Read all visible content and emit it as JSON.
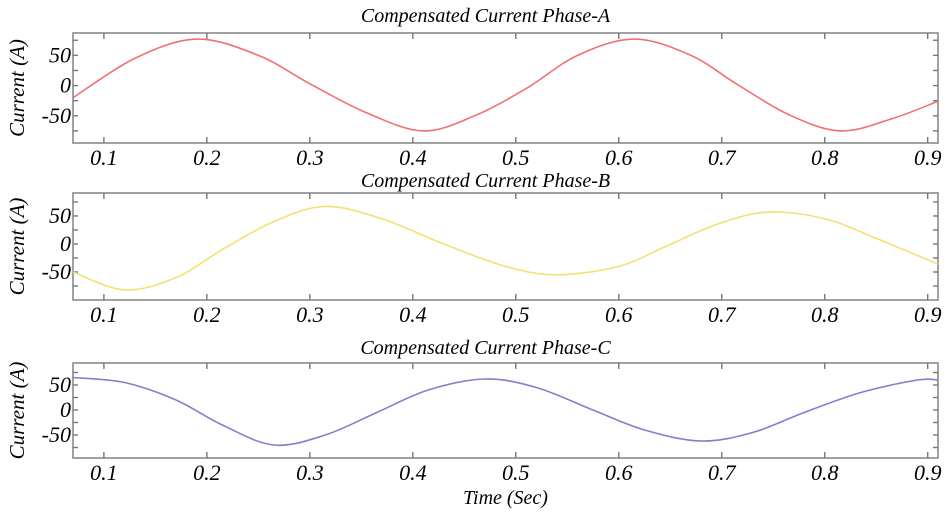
{
  "chart_data": [
    {
      "type": "line",
      "title": "Compensated Current Phase-A",
      "xlabel": "",
      "ylabel": "Current (A)",
      "xlim": [
        0.07,
        0.91
      ],
      "ylim": [
        -95,
        87
      ],
      "xticks": [
        0.1,
        0.2,
        0.3,
        0.4,
        0.5,
        0.6,
        0.7,
        0.8,
        0.9
      ],
      "xtick_labels": [
        "0.1",
        "0.2",
        "0.3",
        "0.4",
        "0.5",
        "0.6",
        "0.7",
        "0.8",
        "0.9"
      ],
      "yticks": [
        50,
        0,
        -50
      ],
      "ytick_labels": [
        "50",
        "0",
        "-50"
      ],
      "color": "#f07070",
      "series": [
        {
          "name": "Phase-A",
          "x": [
            0.07,
            0.13,
            0.19,
            0.25,
            0.3,
            0.355,
            0.41,
            0.46,
            0.51,
            0.56,
            0.615,
            0.67,
            0.715,
            0.765,
            0.815,
            0.865,
            0.91
          ],
          "y": [
            -20,
            45,
            77,
            50,
            3,
            -45,
            -75,
            -50,
            -5,
            50,
            77,
            50,
            2,
            -48,
            -75,
            -55,
            -26
          ]
        }
      ]
    },
    {
      "type": "line",
      "title": "Compensated Current Phase-B",
      "xlabel": "",
      "ylabel": "Current (A)",
      "xlim": [
        0.07,
        0.91
      ],
      "ylim": [
        -100,
        91
      ],
      "xticks": [
        0.1,
        0.2,
        0.3,
        0.4,
        0.5,
        0.6,
        0.7,
        0.8,
        0.9
      ],
      "xtick_labels": [
        "0.1",
        "0.2",
        "0.3",
        "0.4",
        "0.5",
        "0.6",
        "0.7",
        "0.8",
        "0.9"
      ],
      "yticks": [
        50,
        0,
        -50
      ],
      "ytick_labels": [
        "50",
        "0",
        "-50"
      ],
      "color": "#f5e070",
      "series": [
        {
          "name": "Phase-B",
          "x": [
            0.07,
            0.12,
            0.17,
            0.215,
            0.265,
            0.315,
            0.37,
            0.43,
            0.49,
            0.54,
            0.6,
            0.645,
            0.695,
            0.745,
            0.8,
            0.85,
            0.91
          ],
          "y": [
            -50,
            -82,
            -60,
            -10,
            40,
            67,
            45,
            0,
            -40,
            -55,
            -40,
            -5,
            35,
            57,
            45,
            10,
            -36
          ]
        }
      ]
    },
    {
      "type": "line",
      "title": "Compensated Current Phase-C",
      "xlabel": "Time (Sec)",
      "ylabel": "Current (A)",
      "xlim": [
        0.07,
        0.91
      ],
      "ylim": [
        -96,
        94
      ],
      "xticks": [
        0.1,
        0.2,
        0.3,
        0.4,
        0.5,
        0.6,
        0.7,
        0.8,
        0.9
      ],
      "xtick_labels": [
        "0.1",
        "0.2",
        "0.3",
        "0.4",
        "0.5",
        "0.6",
        "0.7",
        "0.8",
        "0.9"
      ],
      "yticks": [
        50,
        0,
        -50
      ],
      "ytick_labels": [
        "50",
        "0",
        "-50"
      ],
      "color": "#8080cc",
      "series": [
        {
          "name": "Phase-C",
          "x": [
            0.07,
            0.12,
            0.17,
            0.215,
            0.265,
            0.315,
            0.365,
            0.415,
            0.47,
            0.52,
            0.575,
            0.625,
            0.68,
            0.73,
            0.78,
            0.835,
            0.89,
            0.91
          ],
          "y": [
            65,
            55,
            20,
            -30,
            -70,
            -50,
            -5,
            40,
            62,
            45,
            0,
            -40,
            -62,
            -45,
            -5,
            35,
            60,
            60
          ]
        }
      ]
    }
  ]
}
